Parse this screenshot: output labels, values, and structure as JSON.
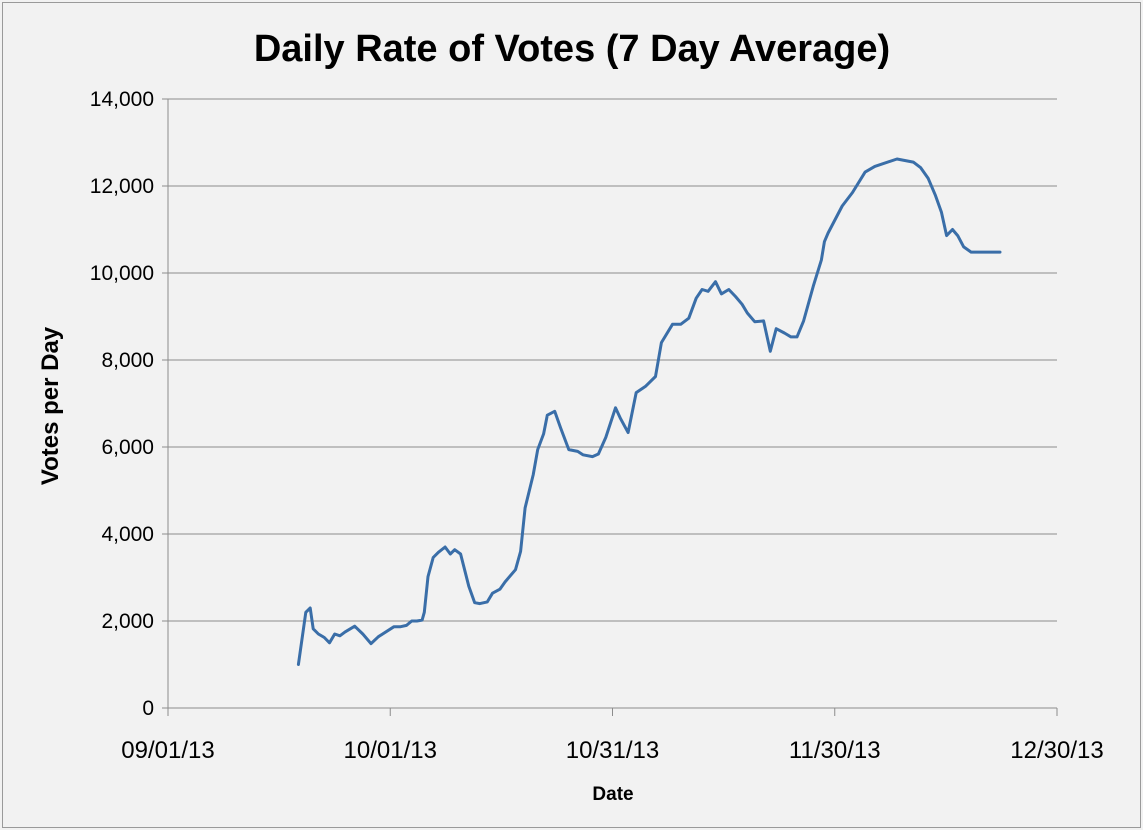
{
  "chart_data": {
    "type": "line",
    "title": "Daily Rate of Votes (7 Day Average)",
    "xlabel": "Date",
    "ylabel": "Votes per Day",
    "ylim": [
      0,
      14000
    ],
    "yticks": [
      0,
      2000,
      4000,
      6000,
      8000,
      10000,
      12000,
      14000
    ],
    "ytick_labels": [
      "0",
      "2,000",
      "4,000",
      "6,000",
      "8,000",
      "10,000",
      "12,000",
      "14,000"
    ],
    "xlim_days": [
      0,
      120
    ],
    "xticks_days": [
      0,
      30,
      60,
      90,
      120
    ],
    "xtick_labels": [
      "09/01/13",
      "10/01/13",
      "10/31/13",
      "11/30/13",
      "12/30/13"
    ],
    "x_unit": "days since 09/01/13",
    "grid": "horizontal",
    "series": [
      {
        "name": "Votes per Day",
        "color": "#3a6ea8",
        "x": [
          17.6,
          18.6,
          19.2,
          19.6,
          20.3,
          21.1,
          21.8,
          22.5,
          23.2,
          23.9,
          25.2,
          26.3,
          27.4,
          28.4,
          30.5,
          31.4,
          32.2,
          32.9,
          33.6,
          34.3,
          34.6,
          35.1,
          35.8,
          36.5,
          37.4,
          38.1,
          38.7,
          39.5,
          40.6,
          41.4,
          42.1,
          43.1,
          43.8,
          44.8,
          45.5,
          46.9,
          47.6,
          48.2,
          49.3,
          49.9,
          50.7,
          51.2,
          52.2,
          53.0,
          54.1,
          55.3,
          56.0,
          57.3,
          58.1,
          59.1,
          60.4,
          61.1,
          62.1,
          63.2,
          64.5,
          65.8,
          66.6,
          68.1,
          69.2,
          70.3,
          71.3,
          72.1,
          72.9,
          73.9,
          74.7,
          75.7,
          76.6,
          77.5,
          78.2,
          79.2,
          80.4,
          81.3,
          82.1,
          83.2,
          84.1,
          84.9,
          85.8,
          87.1,
          88.2,
          88.6,
          89.1,
          91.0,
          92.4,
          94.1,
          95.4,
          98.4,
          100.6,
          101.6,
          102.6,
          103.6,
          104.4,
          105.1,
          105.9,
          106.6,
          107.4,
          108.4,
          109.1,
          109.9,
          110.4,
          111.6,
          112.3
        ],
        "y": [
          1000,
          2200,
          2300,
          1820,
          1700,
          1620,
          1500,
          1700,
          1660,
          1750,
          1880,
          1700,
          1480,
          1640,
          1870,
          1870,
          1900,
          2000,
          2000,
          2020,
          2200,
          3020,
          3460,
          3580,
          3700,
          3540,
          3640,
          3540,
          2800,
          2420,
          2400,
          2440,
          2640,
          2730,
          2900,
          3180,
          3600,
          4600,
          5360,
          5940,
          6300,
          6730,
          6820,
          6440,
          5940,
          5900,
          5820,
          5780,
          5840,
          6220,
          6900,
          6650,
          6330,
          7250,
          7400,
          7620,
          8400,
          8820,
          8820,
          8960,
          9420,
          9620,
          9580,
          9800,
          9520,
          9620,
          9460,
          9280,
          9080,
          8880,
          8900,
          8200,
          8720,
          8620,
          8530,
          8530,
          8900,
          9700,
          10300,
          10720,
          10920,
          11540,
          11850,
          12320,
          12450,
          12620,
          12550,
          12420,
          12180,
          11780,
          11400,
          10860,
          11000,
          10860,
          10600,
          10480,
          10480,
          10480,
          10480,
          10480,
          10480
        ]
      }
    ]
  }
}
